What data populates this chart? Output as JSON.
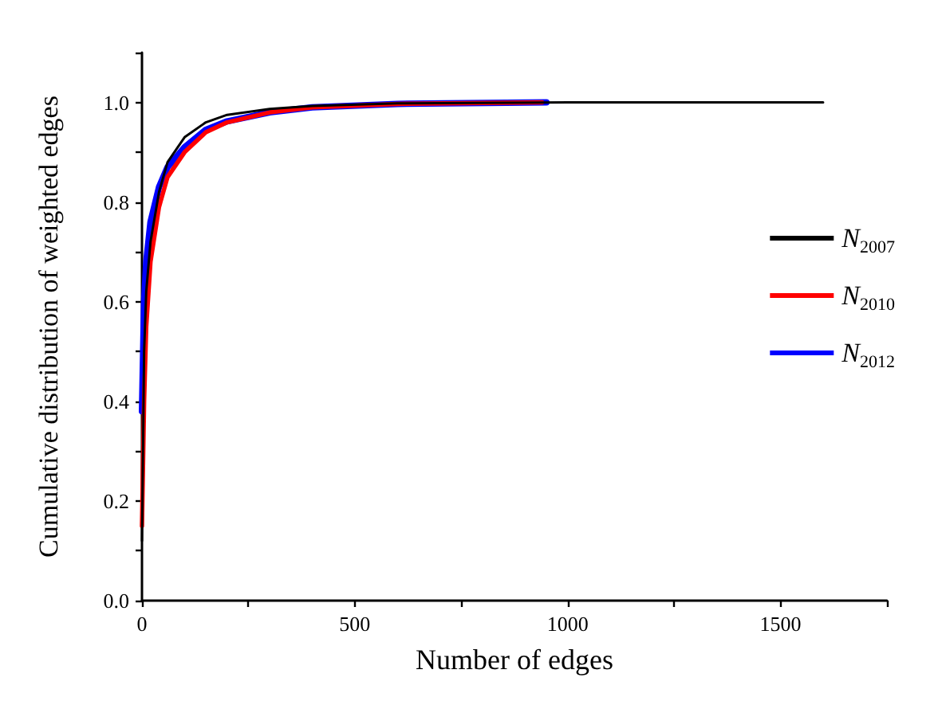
{
  "chart_data": {
    "type": "line",
    "xlabel": "Number of edges",
    "ylabel": "Cumulative distribution of weighted edges",
    "xlim": [
      0,
      1750
    ],
    "ylim": [
      0,
      1.1
    ],
    "xticks": [
      0,
      {
        "value": 250,
        "label": null
      },
      500,
      {
        "value": 750,
        "label": null
      },
      1000,
      {
        "value": 1250,
        "label": null
      },
      1500,
      {
        "value": 1750,
        "label": null
      }
    ],
    "yticks": [
      {
        "value": 0,
        "label": "0.0"
      },
      {
        "value": 0.1,
        "label": null
      },
      0.2,
      {
        "value": 0.3,
        "label": null
      },
      0.4,
      {
        "value": 0.5,
        "label": null
      },
      0.6,
      {
        "value": 0.7,
        "label": null
      },
      0.8,
      {
        "value": 0.9,
        "label": null
      },
      {
        "value": 1,
        "label": "1.0"
      },
      {
        "value": 1.1,
        "label": null
      }
    ],
    "grid": false,
    "legend": "right",
    "marker": "none",
    "line_style": "solid",
    "series": [
      {
        "name": "N$_{2007}$",
        "color": "#000000",
        "x": [
          0,
          5,
          10,
          20,
          40,
          60,
          100,
          150,
          200,
          300,
          400,
          600,
          1000,
          1600
        ],
        "values": [
          0.12,
          0.5,
          0.62,
          0.72,
          0.82,
          0.88,
          0.93,
          0.96,
          0.975,
          0.987,
          0.993,
          0.998,
          1.0,
          1.0
        ]
      },
      {
        "name": "N$_{2010}$",
        "color": "#ff0000",
        "x": [
          0,
          5,
          10,
          20,
          40,
          60,
          100,
          150,
          200,
          300,
          400,
          600,
          940
        ],
        "values": [
          0.15,
          0.4,
          0.55,
          0.68,
          0.79,
          0.85,
          0.9,
          0.94,
          0.96,
          0.98,
          0.99,
          0.997,
          1.0
        ]
      },
      {
        "name": "N$_{2012}$",
        "color": "#0000ff",
        "x": [
          0,
          5,
          10,
          20,
          40,
          60,
          100,
          150,
          200,
          300,
          400,
          600,
          950
        ],
        "values": [
          0.38,
          0.6,
          0.68,
          0.76,
          0.83,
          0.87,
          0.91,
          0.945,
          0.962,
          0.98,
          0.99,
          0.997,
          1.0
        ]
      }
    ]
  }
}
